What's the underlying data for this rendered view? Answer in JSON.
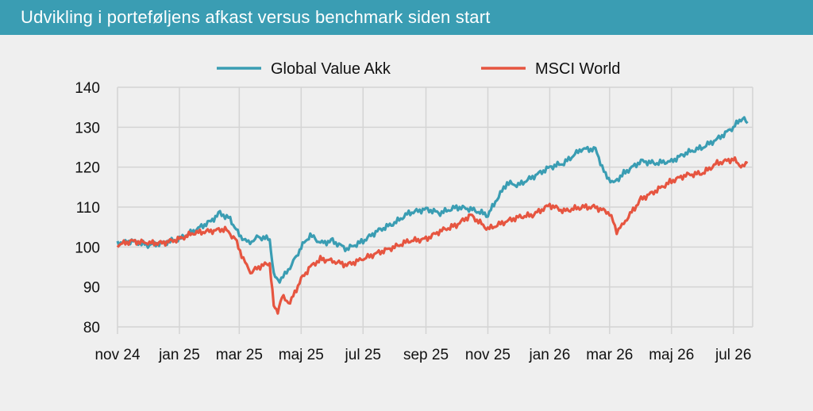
{
  "header": {
    "title": "Udvikling i porteføljens afkast versus benchmark siden start"
  },
  "chart_data": {
    "type": "line",
    "title": "Udvikling i porteføljens afkast versus benchmark siden start",
    "xlabel": "",
    "ylabel": "",
    "ylim": [
      80,
      140
    ],
    "yticks": [
      80,
      90,
      100,
      110,
      120,
      130,
      140
    ],
    "xlim": [
      "2024-11-01",
      "2026-07-20"
    ],
    "xticks": [
      {
        "date": "2024-11-01",
        "label": "nov 24"
      },
      {
        "date": "2025-01-01",
        "label": "jan 25"
      },
      {
        "date": "2025-03-01",
        "label": "mar 25"
      },
      {
        "date": "2025-05-01",
        "label": "maj 25"
      },
      {
        "date": "2025-07-01",
        "label": "jul 25"
      },
      {
        "date": "2025-09-01",
        "label": "sep 25"
      },
      {
        "date": "2025-11-01",
        "label": "nov 25"
      },
      {
        "date": "2026-01-01",
        "label": "jan 26"
      },
      {
        "date": "2026-03-01",
        "label": "mar 26"
      },
      {
        "date": "2026-05-01",
        "label": "maj 26"
      },
      {
        "date": "2026-07-01",
        "label": "jul 26"
      }
    ],
    "grid": true,
    "legend_position": "top-center",
    "series": [
      {
        "name": "Global Value Akk",
        "color": "#3a9db3",
        "points": [
          [
            "2024-11-01",
            101
          ],
          [
            "2024-11-15",
            101.5
          ],
          [
            "2024-12-01",
            100.5
          ],
          [
            "2024-12-15",
            101
          ],
          [
            "2025-01-01",
            102
          ],
          [
            "2025-01-15",
            104
          ],
          [
            "2025-02-01",
            106.5
          ],
          [
            "2025-02-10",
            108.5
          ],
          [
            "2025-02-20",
            107
          ],
          [
            "2025-03-01",
            103
          ],
          [
            "2025-03-10",
            101
          ],
          [
            "2025-03-20",
            102.5
          ],
          [
            "2025-03-31",
            102
          ],
          [
            "2025-04-04",
            93
          ],
          [
            "2025-04-08",
            91.5
          ],
          [
            "2025-04-15",
            93
          ],
          [
            "2025-04-25",
            97
          ],
          [
            "2025-05-01",
            100
          ],
          [
            "2025-05-10",
            103
          ],
          [
            "2025-05-20",
            101
          ],
          [
            "2025-06-01",
            101.5
          ],
          [
            "2025-06-15",
            99.5
          ],
          [
            "2025-07-01",
            101.5
          ],
          [
            "2025-07-15",
            104
          ],
          [
            "2025-08-01",
            106
          ],
          [
            "2025-08-15",
            108.5
          ],
          [
            "2025-09-01",
            109.5
          ],
          [
            "2025-09-15",
            108.5
          ],
          [
            "2025-10-01",
            110
          ],
          [
            "2025-10-15",
            109.5
          ],
          [
            "2025-11-01",
            108
          ],
          [
            "2025-11-10",
            112
          ],
          [
            "2025-11-20",
            116
          ],
          [
            "2025-12-01",
            115.5
          ],
          [
            "2025-12-15",
            117.5
          ],
          [
            "2026-01-01",
            120
          ],
          [
            "2026-01-15",
            121
          ],
          [
            "2026-02-01",
            124.5
          ],
          [
            "2026-02-15",
            124.5
          ],
          [
            "2026-02-25",
            118
          ],
          [
            "2026-03-05",
            116
          ],
          [
            "2026-03-15",
            118.5
          ],
          [
            "2026-04-01",
            121.5
          ],
          [
            "2026-04-15",
            121
          ],
          [
            "2026-05-01",
            121.5
          ],
          [
            "2026-05-15",
            123.5
          ],
          [
            "2026-06-01",
            125
          ],
          [
            "2026-06-15",
            127
          ],
          [
            "2026-07-01",
            130
          ],
          [
            "2026-07-10",
            132.5
          ],
          [
            "2026-07-15",
            131
          ]
        ]
      },
      {
        "name": "MSCI World",
        "color": "#e65540",
        "points": [
          [
            "2024-11-01",
            100.5
          ],
          [
            "2024-11-15",
            101.5
          ],
          [
            "2024-12-01",
            101
          ],
          [
            "2024-12-15",
            101
          ],
          [
            "2025-01-01",
            102
          ],
          [
            "2025-01-15",
            103.5
          ],
          [
            "2025-02-01",
            104
          ],
          [
            "2025-02-15",
            104.5
          ],
          [
            "2025-02-25",
            102
          ],
          [
            "2025-03-05",
            97
          ],
          [
            "2025-03-12",
            93.5
          ],
          [
            "2025-03-20",
            95
          ],
          [
            "2025-03-31",
            96
          ],
          [
            "2025-04-04",
            85
          ],
          [
            "2025-04-08",
            84
          ],
          [
            "2025-04-12",
            87.5
          ],
          [
            "2025-04-20",
            86
          ],
          [
            "2025-05-01",
            92
          ],
          [
            "2025-05-10",
            95
          ],
          [
            "2025-05-20",
            97
          ],
          [
            "2025-06-01",
            96.5
          ],
          [
            "2025-06-15",
            95.5
          ],
          [
            "2025-07-01",
            97
          ],
          [
            "2025-07-15",
            98.5
          ],
          [
            "2025-08-01",
            100
          ],
          [
            "2025-08-15",
            101.5
          ],
          [
            "2025-09-01",
            102
          ],
          [
            "2025-09-15",
            104
          ],
          [
            "2025-10-01",
            105.5
          ],
          [
            "2025-10-15",
            108
          ],
          [
            "2025-11-01",
            104.5
          ],
          [
            "2025-11-15",
            106
          ],
          [
            "2025-12-01",
            107.5
          ],
          [
            "2025-12-15",
            108
          ],
          [
            "2026-01-01",
            110.5
          ],
          [
            "2026-01-15",
            109
          ],
          [
            "2026-02-01",
            110
          ],
          [
            "2026-02-15",
            110
          ],
          [
            "2026-03-01",
            108.5
          ],
          [
            "2026-03-08",
            104
          ],
          [
            "2026-03-15",
            106
          ],
          [
            "2026-04-01",
            112
          ],
          [
            "2026-04-15",
            114
          ],
          [
            "2026-05-01",
            116.5
          ],
          [
            "2026-05-15",
            118
          ],
          [
            "2026-06-01",
            118.5
          ],
          [
            "2026-06-15",
            121
          ],
          [
            "2026-07-01",
            122
          ],
          [
            "2026-07-10",
            120
          ],
          [
            "2026-07-15",
            121
          ]
        ]
      }
    ]
  }
}
